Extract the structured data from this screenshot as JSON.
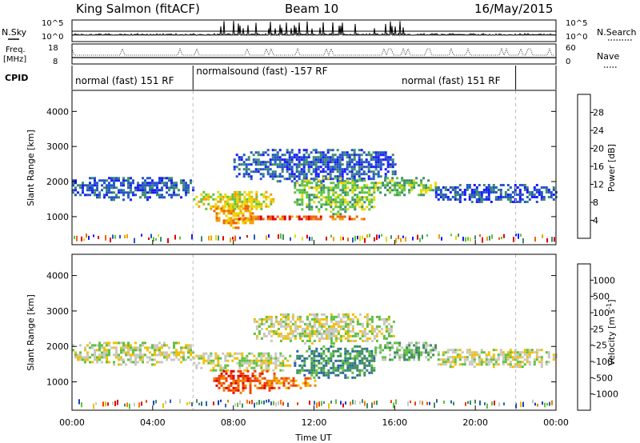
{
  "header": {
    "station": "King Salmon (fitACF)",
    "beam": "Beam 10",
    "date": "16/May/2015"
  },
  "side_labels": {
    "nsky": "N.Sky",
    "freq_top": "Freq.",
    "freq_bottom": "[MHz]",
    "cpid": "CPID",
    "nsearch": "N.Search",
    "nave": "Nave"
  },
  "top_axes": {
    "nsky_ticks": [
      "10^5",
      "10^0"
    ],
    "nsearch_ticks": [
      "10^5",
      "10^0"
    ],
    "freq_ticks": [
      "18",
      "8"
    ],
    "nave_ticks": [
      "60",
      "0"
    ]
  },
  "cpid_segments": [
    {
      "label": "normal (fast) 151 RF",
      "start_h": 0,
      "end_h": 6
    },
    {
      "label": "normalsound (fast) -157 RF",
      "start_h": 6,
      "end_h": 22
    },
    {
      "label": "normal (fast) 151 RF",
      "start_h": 22,
      "end_h": 24
    }
  ],
  "chart_data": [
    {
      "type": "heatmap",
      "name": "power",
      "ylabel": "Slant Range [km]",
      "ylim": [
        200,
        4600
      ],
      "y_ticks": [
        "1000",
        "2000",
        "3000",
        "4000"
      ],
      "xlim": [
        0,
        24
      ],
      "colorbar": {
        "label": "Power [dB]",
        "ticks": [
          "4",
          "8",
          "12",
          "16",
          "20",
          "24",
          "28"
        ],
        "colors": [
          "#1a1aff",
          "#2456c8",
          "#3c8c70",
          "#5cc43c",
          "#e8d800",
          "#f0a000",
          "#f06010",
          "#e00000"
        ]
      },
      "regions": [
        {
          "time_h": [
            0.0,
            6.0
          ],
          "range_km": [
            1500,
            2200
          ],
          "level": 1
        },
        {
          "time_h": [
            6.0,
            10.0
          ],
          "range_km": [
            1200,
            1800
          ],
          "level": 4
        },
        {
          "time_h": [
            7.0,
            9.0
          ],
          "range_km": [
            700,
            1400
          ],
          "level": 5
        },
        {
          "time_h": [
            8.0,
            14.5
          ],
          "range_km": [
            900,
            1100
          ],
          "level": 6
        },
        {
          "time_h": [
            8.0,
            16.0
          ],
          "range_km": [
            2000,
            3000
          ],
          "level": 1
        },
        {
          "time_h": [
            11.0,
            15.0
          ],
          "range_km": [
            1100,
            2200
          ],
          "level": 3
        },
        {
          "time_h": [
            15.0,
            18.0
          ],
          "range_km": [
            1600,
            2200
          ],
          "level": 3
        },
        {
          "time_h": [
            18.0,
            24.0
          ],
          "range_km": [
            1400,
            2000
          ],
          "level": 1
        }
      ]
    },
    {
      "type": "heatmap",
      "name": "velocity",
      "ylabel": "Slant Range [km]",
      "ylim": [
        200,
        4600
      ],
      "y_ticks": [
        "1000",
        "2000",
        "3000",
        "4000"
      ],
      "xlim": [
        0,
        24
      ],
      "x_ticks": [
        "00:00",
        "04:00",
        "08:00",
        "12:00",
        "16:00",
        "20:00",
        "00:00"
      ],
      "xlabel": "Time UT",
      "colorbar": {
        "label": "Velocity [m s",
        "label_sup": "-1",
        "label_end": "]",
        "ticks": [
          "1000",
          "500",
          "100",
          "25",
          "-25",
          "-100",
          "-500",
          "-1000"
        ],
        "colors": [
          "#1a3cc8",
          "#2a64a8",
          "#3c8c60",
          "#60c040",
          "#c8c8c0",
          "#f0c000",
          "#f08000",
          "#f04000",
          "#e00000"
        ]
      },
      "regions": [
        {
          "time_h": [
            0.0,
            6.0
          ],
          "range_km": [
            1500,
            2200
          ],
          "level": 4
        },
        {
          "time_h": [
            6.0,
            11.0
          ],
          "range_km": [
            1300,
            1900
          ],
          "level": 4
        },
        {
          "time_h": [
            7.0,
            10.0
          ],
          "range_km": [
            700,
            1400
          ],
          "level": 7
        },
        {
          "time_h": [
            9.5,
            12.0
          ],
          "range_km": [
            850,
            1200
          ],
          "level": 6
        },
        {
          "time_h": [
            11.0,
            15.0
          ],
          "range_km": [
            1100,
            2100
          ],
          "level": 2
        },
        {
          "time_h": [
            9.0,
            16.0
          ],
          "range_km": [
            2100,
            3000
          ],
          "level": 4
        },
        {
          "time_h": [
            15.0,
            18.0
          ],
          "range_km": [
            1600,
            2200
          ],
          "level": 3
        },
        {
          "time_h": [
            18.0,
            24.0
          ],
          "range_km": [
            1400,
            2000
          ],
          "level": 4
        }
      ]
    }
  ]
}
